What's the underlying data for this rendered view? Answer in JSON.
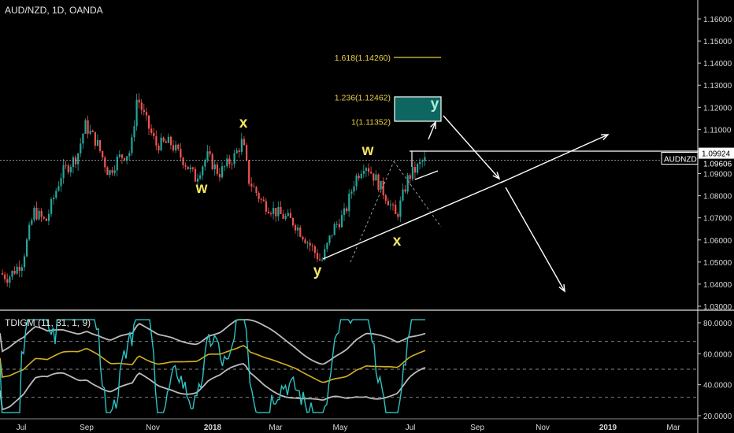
{
  "header": {
    "title": "AUD/NZD, 1D, OANDA"
  },
  "indicator": {
    "title": "TDIGM (11, 31, 1, 9)"
  },
  "price_axis": {
    "ticks": [
      "1.16000",
      "1.15000",
      "1.14000",
      "1.13000",
      "1.12000",
      "1.11000",
      "1.10000",
      "1.09000",
      "1.08000",
      "1.07000",
      "1.06000",
      "1.05000",
      "1.04000",
      "1.03000"
    ],
    "last_price": "1.09606",
    "symbol_badge": "AUDNZD",
    "level_label": "1.09924"
  },
  "indicator_axis": {
    "ticks": [
      "80.0000",
      "60.0000",
      "40.0000",
      "20.0000"
    ]
  },
  "time_axis": {
    "labels": [
      "Jul",
      "Sep",
      "Nov",
      "2018",
      "Mar",
      "May",
      "Jul",
      "Sep",
      "Nov",
      "2019",
      "Mar"
    ]
  },
  "fib": [
    {
      "label": "1.618(1.14260)",
      "price": 1.1426
    },
    {
      "label": "1.236(1.12462)",
      "price": 1.12462
    },
    {
      "label": "1(1.11352)",
      "price": 1.11352
    }
  ],
  "wave_labels": [
    "w",
    "x",
    "w",
    "x",
    "y",
    "y"
  ],
  "colors": {
    "up": "#26a69a",
    "down": "#ef5350",
    "fib": "#e8d040",
    "wave": "#f5e663",
    "target_box": "#0e6660",
    "tdi_line": "#2ec4c4",
    "tdi_mid": "#d4b020",
    "band": "#bbbbbb"
  },
  "chart_data": {
    "type": "candlestick",
    "title": "AUD/NZD, 1D, OANDA",
    "x": [
      "2017-07",
      "2017-08",
      "2017-09",
      "2017-10",
      "2017-11",
      "2017-12",
      "2018-01",
      "2018-02",
      "2018-03",
      "2018-04",
      "2018-05",
      "2018-06",
      "2018-07"
    ],
    "close_approx": [
      1.041,
      1.08,
      1.105,
      1.128,
      1.095,
      1.088,
      1.093,
      1.102,
      1.07,
      1.055,
      1.091,
      1.075,
      1.096
    ],
    "ylim": [
      1.028,
      1.168
    ],
    "annotations": [
      "wave labels w, x, w, x, y",
      "fib 1.618 at 1.14260",
      "fib 1.236 at 1.12462",
      "fib 1 at 1.11352",
      "level 1.09924"
    ]
  }
}
